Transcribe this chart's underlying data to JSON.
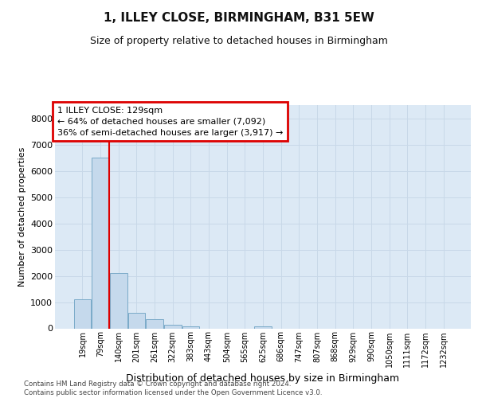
{
  "title": "1, ILLEY CLOSE, BIRMINGHAM, B31 5EW",
  "subtitle": "Size of property relative to detached houses in Birmingham",
  "xlabel": "Distribution of detached houses by size in Birmingham",
  "ylabel": "Number of detached properties",
  "bar_labels": [
    "19sqm",
    "79sqm",
    "140sqm",
    "201sqm",
    "261sqm",
    "322sqm",
    "383sqm",
    "443sqm",
    "504sqm",
    "565sqm",
    "625sqm",
    "686sqm",
    "747sqm",
    "807sqm",
    "868sqm",
    "929sqm",
    "990sqm",
    "1050sqm",
    "1111sqm",
    "1172sqm",
    "1232sqm"
  ],
  "bar_values": [
    1100,
    6500,
    2100,
    600,
    350,
    130,
    80,
    0,
    0,
    0,
    80,
    0,
    0,
    0,
    0,
    0,
    0,
    0,
    0,
    0,
    0
  ],
  "bar_color": "#c5d9ec",
  "bar_edge_color": "#7aaac8",
  "grid_color": "#c8d8e8",
  "background_color": "#dce9f5",
  "vline_x_index": 1.48,
  "annotation_text": "1 ILLEY CLOSE: 129sqm\n← 64% of detached houses are smaller (7,092)\n36% of semi-detached houses are larger (3,917) →",
  "annotation_box_color": "#dd0000",
  "ylim": [
    0,
    8500
  ],
  "yticks": [
    0,
    1000,
    2000,
    3000,
    4000,
    5000,
    6000,
    7000,
    8000
  ],
  "footer_line1": "Contains HM Land Registry data © Crown copyright and database right 2024.",
  "footer_line2": "Contains public sector information licensed under the Open Government Licence v3.0."
}
